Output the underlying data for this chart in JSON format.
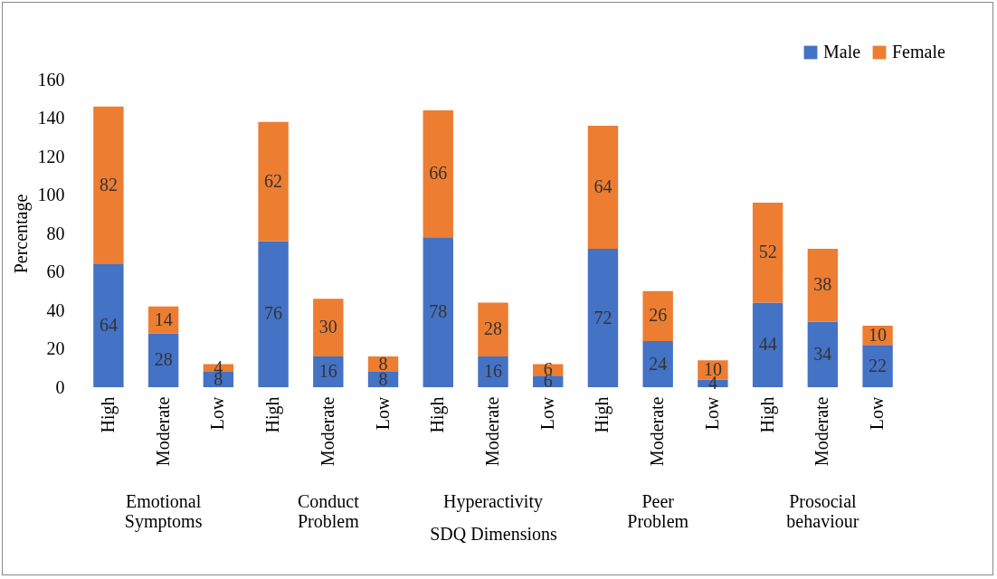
{
  "chart_data": {
    "type": "bar",
    "stacked": true,
    "xlabel": "SDQ Dimensions",
    "ylabel": "Percentage",
    "categories": [
      "High",
      "Moderate",
      "Low",
      "High",
      "Moderate",
      "Low",
      "High",
      "Moderate",
      "Low",
      "High",
      "Moderate",
      "Low",
      "High",
      "Moderate",
      "Low"
    ],
    "series": [
      {
        "name": "Male",
        "color": "#4472c4",
        "values": [
          64,
          28,
          8,
          76,
          16,
          8,
          78,
          16,
          6,
          72,
          24,
          4,
          44,
          34,
          22
        ]
      },
      {
        "name": "Female",
        "color": "#ed7d31",
        "values": [
          82,
          14,
          4,
          62,
          30,
          8,
          66,
          28,
          6,
          64,
          26,
          10,
          52,
          38,
          10
        ]
      }
    ],
    "annotations": [
      "Emotional Symptoms",
      "Conduct Problem",
      "Hyperactivity",
      "Peer Problem",
      "Prosocial behaviour"
    ],
    "ylim": [
      0,
      160
    ],
    "yticks": [
      0,
      20,
      40,
      60,
      80,
      100,
      120,
      140,
      160
    ],
    "grid": false,
    "legend": "top right",
    "data_labels": true
  }
}
